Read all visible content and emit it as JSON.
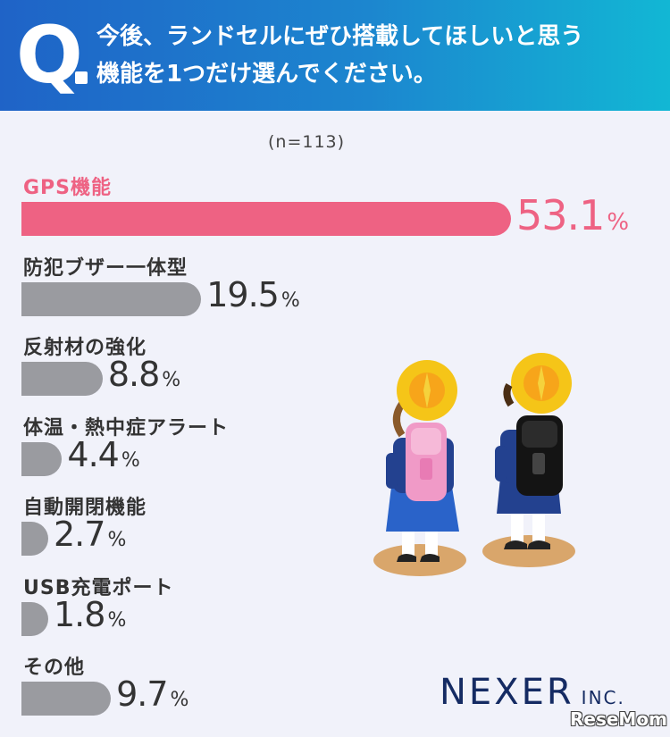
{
  "header": {
    "q_letter": "Q",
    "question_line1": "今後、ランドセルにぜひ搭載してほしいと思う",
    "question_line2": "機能を1つだけ選んでください。"
  },
  "sample_note": "(n=113)",
  "percent_sign": "%",
  "chart_data": {
    "type": "bar",
    "orientation": "horizontal",
    "unit": "%",
    "categories": [
      "GPS機能",
      "防犯ブザー一体型",
      "反射材の強化",
      "体温・熱中症アラート",
      "自動開閉機能",
      "USB充電ポート",
      "その他"
    ],
    "values": [
      53.1,
      19.5,
      8.8,
      4.4,
      2.7,
      1.8,
      9.7
    ],
    "value_labels": [
      "53.1",
      "19.5",
      "8.8",
      "4.4",
      "2.7",
      "1.8",
      "9.7"
    ],
    "highlight_index": 0,
    "colors": {
      "highlight": "#ee6283",
      "default": "#9a9ba0"
    }
  },
  "brand": {
    "company": "NEXER",
    "suffix": "INC.",
    "watermark": "ReseMom"
  }
}
